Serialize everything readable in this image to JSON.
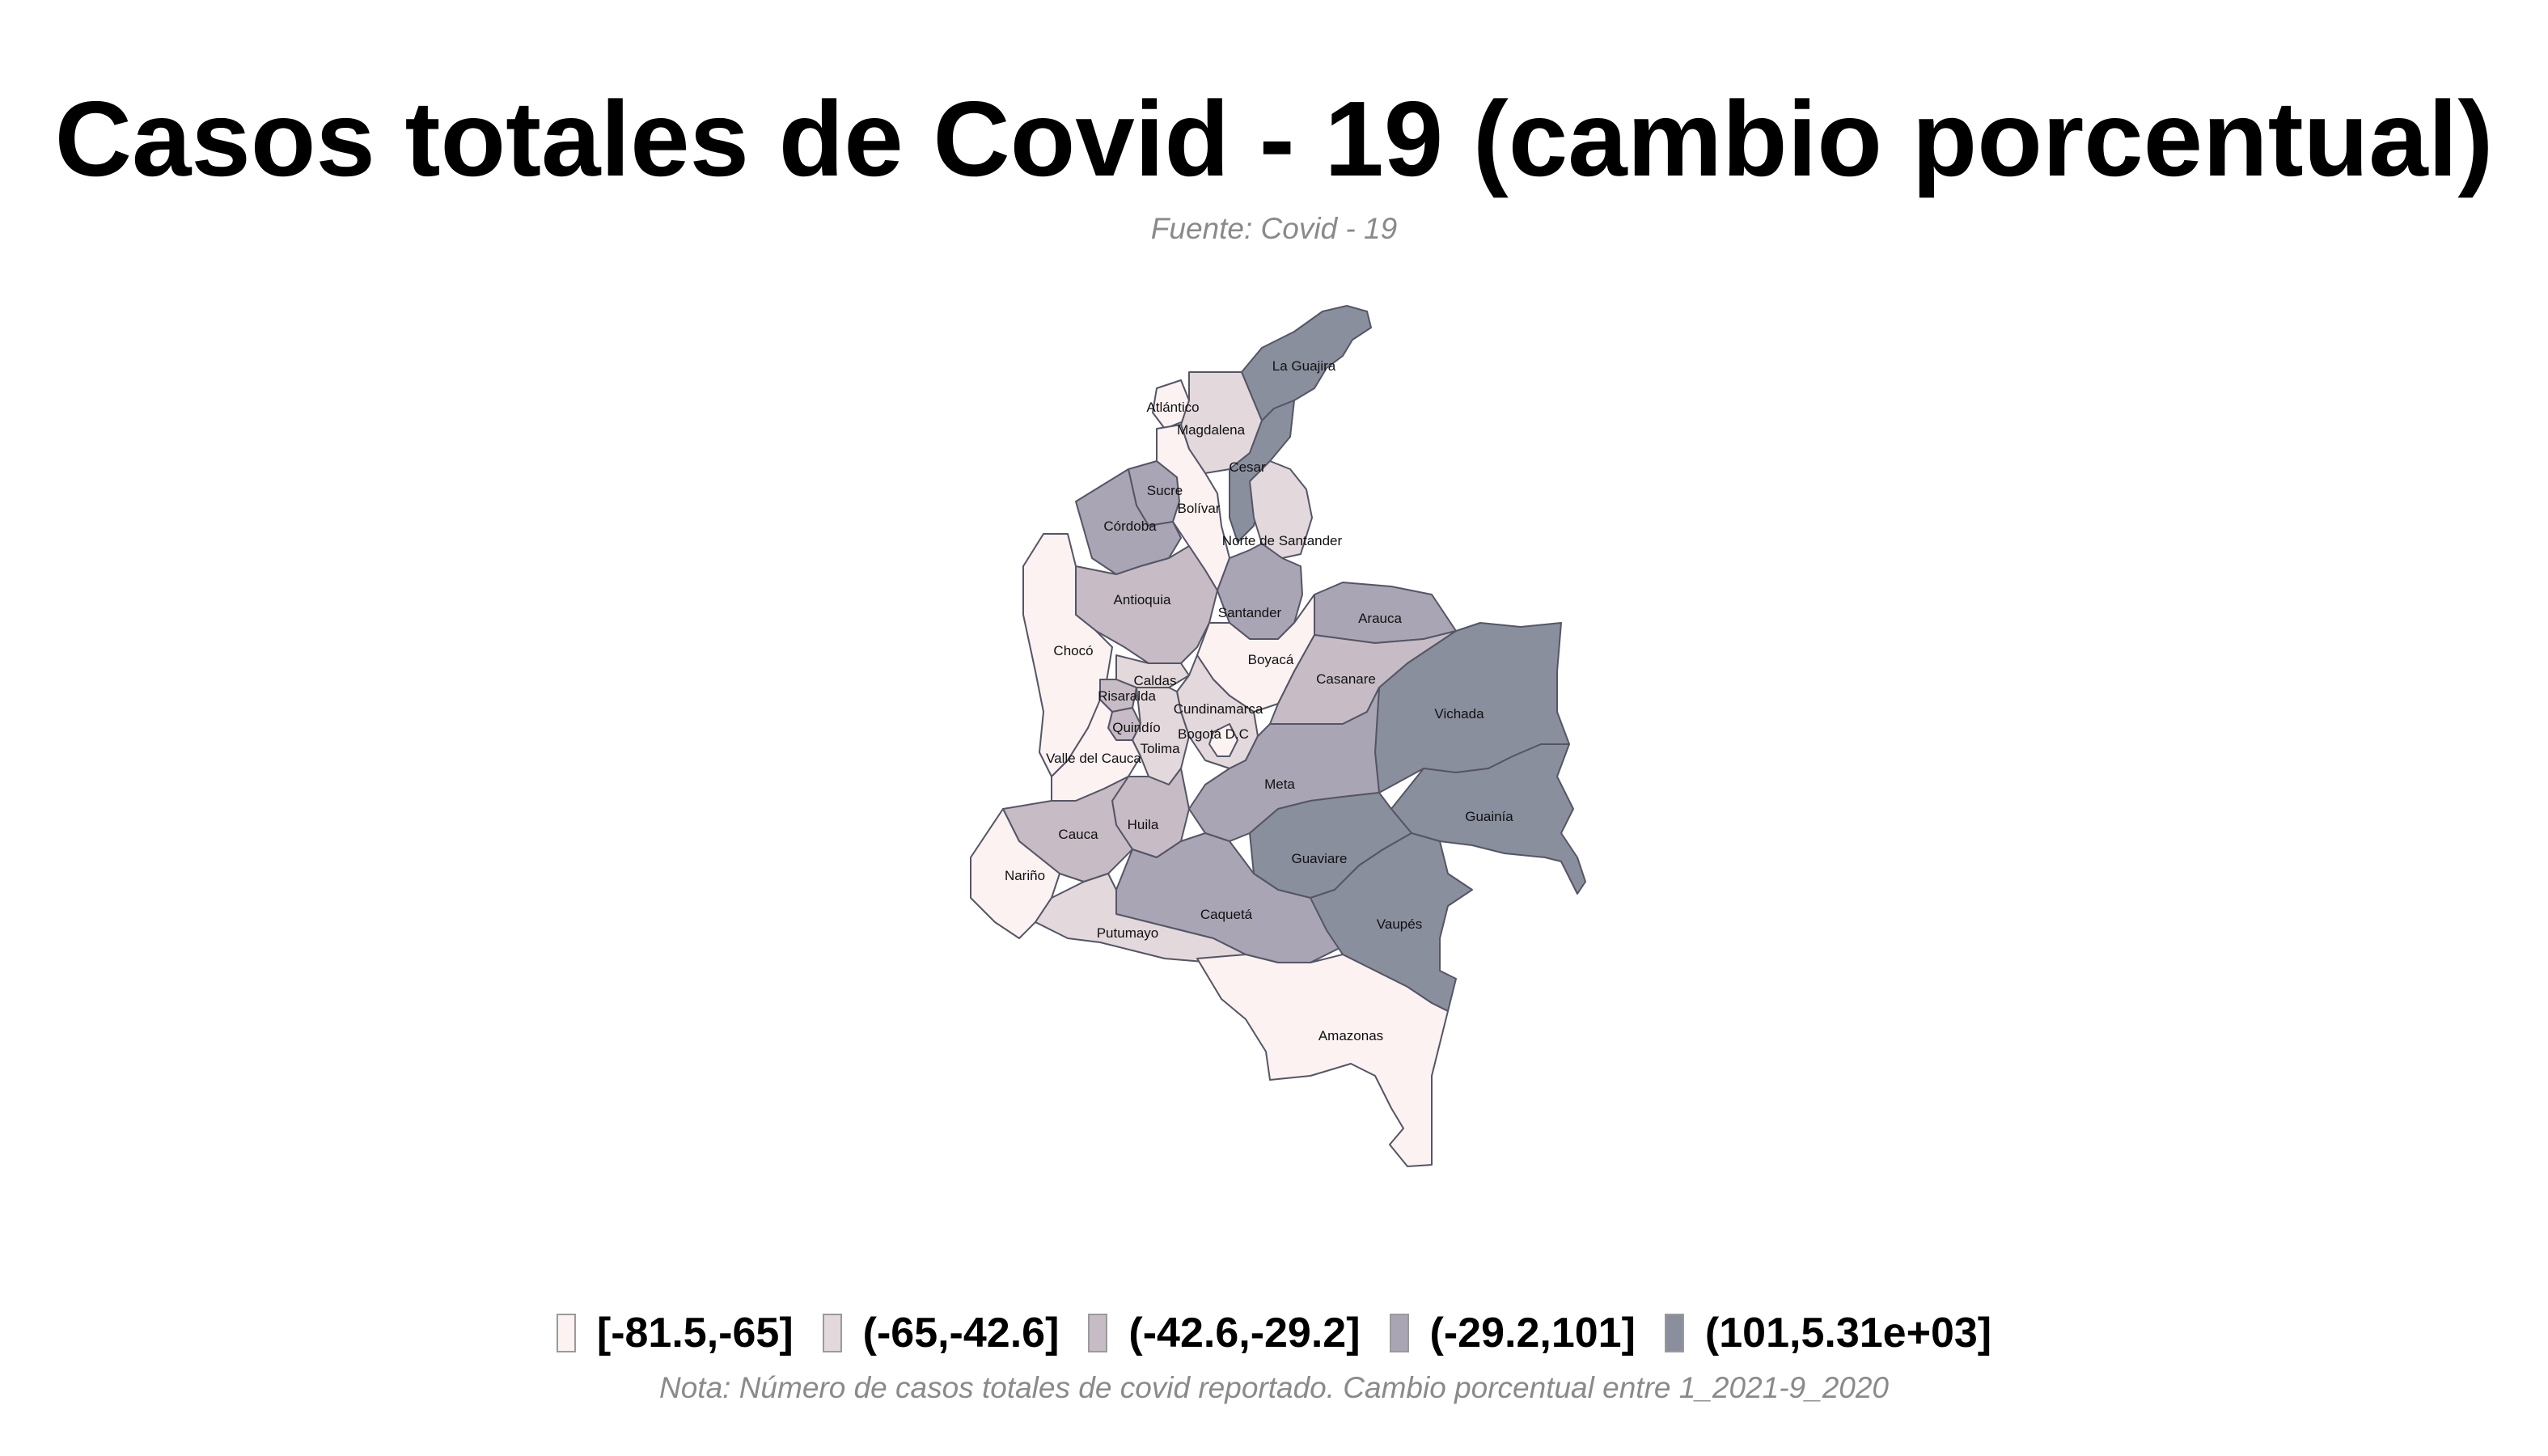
{
  "title": "Casos totales de Covid - 19 (cambio porcentual)",
  "subtitle": "Fuente: Covid - 19",
  "note": "Nota: Número de casos totales de covid reportado. Cambio porcentual entre 1_2021-9_2020",
  "legend": [
    {
      "label": "[-81.5,-65]",
      "color": "#fcf2f2"
    },
    {
      "label": "(-65,-42.6]",
      "color": "#e3d8dc"
    },
    {
      "label": "(-42.6,-29.2]",
      "color": "#c7bcc5"
    },
    {
      "label": "(-29.2,101]",
      "color": "#aaa5b4"
    },
    {
      "label": "(101,5.31e+03]",
      "color": "#8a8f9e"
    }
  ],
  "departments": [
    {
      "name": "La Guajira",
      "class": 5
    },
    {
      "name": "Atlántico",
      "class": 1
    },
    {
      "name": "Magdalena",
      "class": 2
    },
    {
      "name": "Cesar",
      "class": 5
    },
    {
      "name": "Sucre",
      "class": 4
    },
    {
      "name": "Bolívar",
      "class": 1
    },
    {
      "name": "Córdoba",
      "class": 4
    },
    {
      "name": "Norte de Santander",
      "class": 2
    },
    {
      "name": "Antioquia",
      "class": 3
    },
    {
      "name": "Santander",
      "class": 4
    },
    {
      "name": "Arauca",
      "class": 4
    },
    {
      "name": "Chocó",
      "class": 1
    },
    {
      "name": "Boyacá",
      "class": 1
    },
    {
      "name": "Caldas",
      "class": 2
    },
    {
      "name": "Risaralda",
      "class": 3
    },
    {
      "name": "Cundinamarca",
      "class": 2
    },
    {
      "name": "Casanare",
      "class": 3
    },
    {
      "name": "Vichada",
      "class": 5
    },
    {
      "name": "Quindío",
      "class": 3
    },
    {
      "name": "Bogotá D.C",
      "class": 1
    },
    {
      "name": "Tolima",
      "class": 2
    },
    {
      "name": "Valle del Cauca",
      "class": 1
    },
    {
      "name": "Meta",
      "class": 4
    },
    {
      "name": "Guainía",
      "class": 5
    },
    {
      "name": "Huila",
      "class": 3
    },
    {
      "name": "Cauca",
      "class": 3
    },
    {
      "name": "Guaviare",
      "class": 5
    },
    {
      "name": "Nariño",
      "class": 1
    },
    {
      "name": "Caquetá",
      "class": 4
    },
    {
      "name": "Vaupés",
      "class": 5
    },
    {
      "name": "Putumayo",
      "class": 2
    },
    {
      "name": "Amazonas",
      "class": 1
    }
  ]
}
